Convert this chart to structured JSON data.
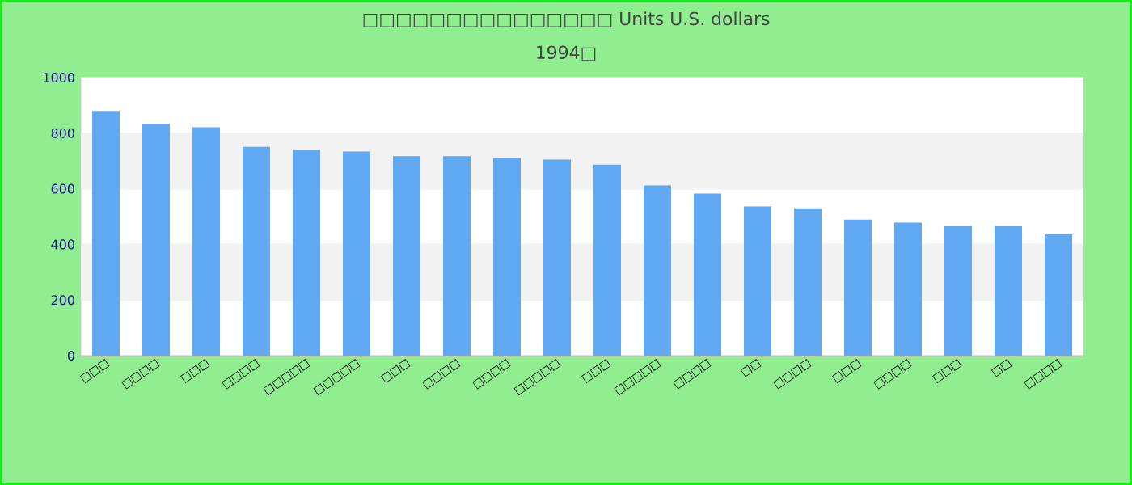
{
  "chart_data": {
    "type": "bar",
    "title": "□□□□□□□□□□□□□□□ Units U.S. dollars",
    "subtitle": "1994□",
    "categories": [
      "□□□",
      "□□□□",
      "□□□",
      "□□□□",
      "□□□□□",
      "□□□□□",
      "□□□",
      "□□□□",
      "□□□□",
      "□□□□□",
      "□□□",
      "□□□□□",
      "□□□□",
      "□□",
      "□□□□",
      "□□□",
      "□□□□",
      "□□□",
      "□□",
      "□□□□"
    ],
    "values": [
      880,
      833,
      821,
      751,
      740,
      734,
      717,
      717,
      711,
      705,
      687,
      612,
      583,
      536,
      530,
      489,
      478,
      466,
      466,
      437
    ],
    "color": "#60a8f2",
    "ylim": [
      0,
      1000
    ],
    "yticks": [
      0,
      200,
      400,
      600,
      800,
      1000
    ],
    "grid": "y"
  }
}
